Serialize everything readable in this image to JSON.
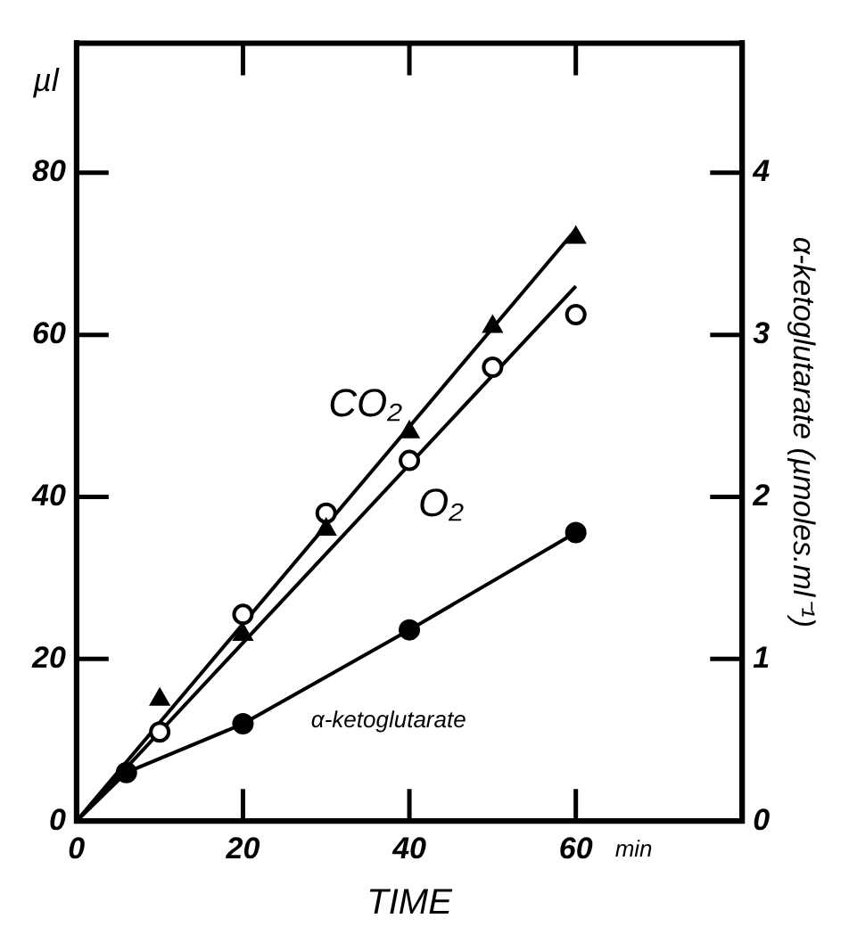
{
  "chart_data": {
    "type": "scatter",
    "xlabel": "TIME",
    "ylabel": "µl",
    "y2label": "α-ketoglutarate (µmoles.ml⁻¹)",
    "xlim": [
      0,
      80
    ],
    "xticks": [
      0,
      20,
      40,
      60
    ],
    "ylim": [
      0,
      96
    ],
    "yticks": [
      0,
      20,
      40,
      60,
      80
    ],
    "y2lim": [
      0,
      4.8
    ],
    "y2ticks": [
      0,
      1,
      2,
      3,
      4
    ],
    "grid": false,
    "legend": false,
    "annotations": [
      "min"
    ],
    "series": [
      {
        "name": "CO₂",
        "marker": "triangle",
        "color": "#000000",
        "x": [
          10,
          20,
          30,
          40,
          50,
          60
        ],
        "values": [
          15,
          23,
          36,
          48,
          61,
          72
        ]
      },
      {
        "name": "O₂",
        "marker": "circle",
        "color": "#000000",
        "x": [
          10,
          20,
          30,
          40,
          50,
          60
        ],
        "values": [
          11,
          25.5,
          38,
          44.5,
          56,
          62.5
        ]
      },
      {
        "name": "α-ketoglutarate",
        "marker": "circle",
        "axis": "y2",
        "color": "#000000",
        "x": [
          6,
          20,
          40,
          60
        ],
        "values": [
          0.3,
          0.6,
          1.18,
          1.78
        ]
      },
      {
        "type": "line",
        "marker": "none",
        "color": "#000000",
        "x": [
          0,
          60
        ],
        "values": [
          0,
          73
        ]
      },
      {
        "type": "line",
        "marker": "none",
        "color": "#000000",
        "x": [
          0,
          60
        ],
        "values": [
          0,
          66
        ]
      },
      {
        "type": "line",
        "marker": "none",
        "axis": "y2",
        "color": "#000000",
        "x": [
          0,
          6,
          20,
          40,
          60
        ],
        "values": [
          0,
          0.3,
          0.6,
          1.18,
          1.78
        ]
      }
    ]
  }
}
